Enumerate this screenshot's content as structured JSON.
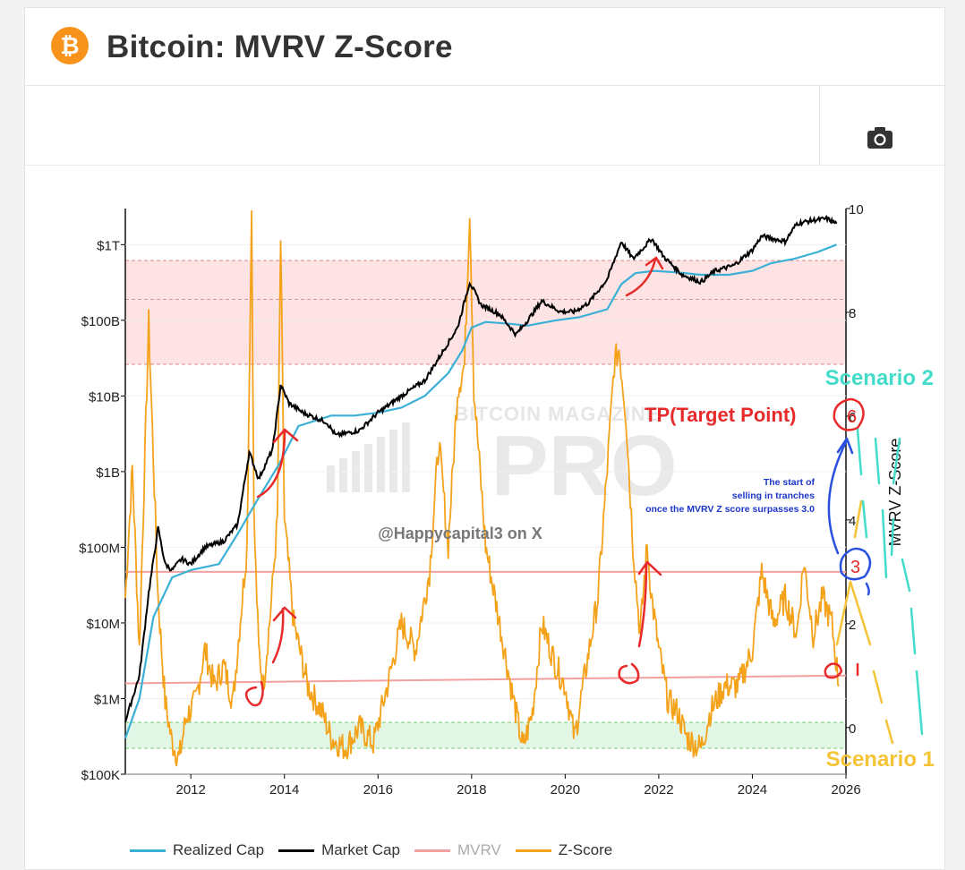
{
  "header": {
    "title": "Bitcoin: MVRV Z-Score",
    "logo_glyph": "₿",
    "logo_icon": "bitcoin-logo-icon"
  },
  "toolbar": {
    "camera_icon": "camera-icon"
  },
  "colors": {
    "realized": "#3ab0d6",
    "market": "#000000",
    "mvrv": "#f2a0a0",
    "zscore": "#f5a21b",
    "red_band": "#fde3e3",
    "green_band": "#e2f6e5",
    "handwriting_red": "#e82a2a",
    "handwriting_blue": "#2a50e0",
    "scenario1": "#f4c436",
    "scenario2": "#43dcc9"
  },
  "chart_data": {
    "type": "line",
    "title": "Bitcoin: MVRV Z-Score",
    "xlabel": "",
    "ylabel_left": "",
    "ylabel_right": "MVRV Z-Score",
    "x_ticks": [
      "2012",
      "2014",
      "2016",
      "2018",
      "2020",
      "2022",
      "2024",
      "2026"
    ],
    "xlim": [
      2010.6,
      2026.0
    ],
    "yleft_scale": "log",
    "yleft_ticks": [
      {
        "value": 100000,
        "label": "$100K"
      },
      {
        "value": 1000000,
        "label": "$1M"
      },
      {
        "value": 10000000,
        "label": "$10M"
      },
      {
        "value": 100000000,
        "label": "$100M"
      },
      {
        "value": 1000000000,
        "label": "$1B"
      },
      {
        "value": 10000000000,
        "label": "$10B"
      },
      {
        "value": 100000000000,
        "label": "$100B"
      },
      {
        "value": 1000000000000,
        "label": "$1T"
      }
    ],
    "yleft_range": [
      100000,
      3000000000000
    ],
    "yright_ticks": [
      "0",
      "2",
      "4",
      "6",
      "8",
      "10"
    ],
    "yright_range": [
      -0.9,
      10
    ],
    "bands": {
      "red_zone": [
        7,
        9
      ],
      "green_zone": [
        -0.4,
        0.1
      ]
    },
    "series": [
      {
        "name": "Market Cap",
        "x": [
          2010.6,
          2010.9,
          2011.1,
          2011.3,
          2011.45,
          2011.6,
          2011.8,
          2012.0,
          2012.3,
          2012.7,
          2013.0,
          2013.25,
          2013.45,
          2013.75,
          2013.92,
          2014.1,
          2014.4,
          2014.9,
          2015.1,
          2015.6,
          2016.0,
          2016.5,
          2017.0,
          2017.4,
          2017.7,
          2017.96,
          2018.2,
          2018.6,
          2018.95,
          2019.2,
          2019.5,
          2019.9,
          2020.2,
          2020.5,
          2020.9,
          2021.2,
          2021.45,
          2021.85,
          2022.1,
          2022.5,
          2022.9,
          2023.2,
          2023.6,
          2024.0,
          2024.2,
          2024.7,
          2024.95,
          2025.3,
          2025.6,
          2025.8
        ],
        "values": [
          500000.0,
          2000000.0,
          25000000.0,
          180000000.0,
          60000000.0,
          50000000.0,
          70000000.0,
          60000000.0,
          100000000.0,
          120000000.0,
          200000000.0,
          1800000000.0,
          800000000.0,
          2000000000.0,
          14000000000.0,
          8000000000.0,
          6000000000.0,
          4500000000.0,
          3000000000.0,
          3500000000.0,
          6000000000.0,
          10000000000.0,
          16000000000.0,
          40000000000.0,
          80000000000.0,
          320000000000.0,
          160000000000.0,
          120000000000.0,
          65000000000.0,
          100000000000.0,
          180000000000.0,
          130000000000.0,
          130000000000.0,
          170000000000.0,
          350000000000.0,
          1100000000000.0,
          650000000000.0,
          1200000000000.0,
          700000000000.0,
          400000000000.0,
          320000000000.0,
          450000000000.0,
          530000000000.0,
          850000000000.0,
          1300000000000.0,
          1100000000000.0,
          1900000000000.0,
          2100000000000.0,
          2200000000000.0,
          1900000000000.0
        ]
      },
      {
        "name": "Realized Cap",
        "x": [
          2010.6,
          2010.9,
          2011.2,
          2011.6,
          2012.0,
          2012.6,
          2013.0,
          2013.4,
          2013.9,
          2014.3,
          2015.0,
          2015.5,
          2016.0,
          2016.5,
          2017.0,
          2017.5,
          2017.8,
          2018.0,
          2018.3,
          2018.8,
          2019.2,
          2019.8,
          2020.3,
          2020.9,
          2021.2,
          2021.5,
          2021.9,
          2022.4,
          2022.9,
          2023.5,
          2024.0,
          2024.4,
          2024.9,
          2025.4,
          2025.8
        ],
        "values": [
          300000.0,
          1000000.0,
          12000000.0,
          40000000.0,
          50000000.0,
          60000000.0,
          150000000.0,
          400000000.0,
          1300000000.0,
          4000000000.0,
          5500000000.0,
          5500000000.0,
          6000000000.0,
          7000000000.0,
          10000000000.0,
          20000000000.0,
          40000000000.0,
          80000000000.0,
          95000000000.0,
          90000000000.0,
          85000000000.0,
          100000000000.0,
          110000000000.0,
          140000000000.0,
          300000000000.0,
          420000000000.0,
          450000000000.0,
          430000000000.0,
          400000000000.0,
          400000000000.0,
          450000000000.0,
          570000000000.0,
          650000000000.0,
          800000000000.0,
          1000000000000.0
        ]
      },
      {
        "name": "Z-Score",
        "x": [
          2010.6,
          2010.75,
          2010.9,
          2011.1,
          2011.3,
          2011.45,
          2011.6,
          2011.75,
          2011.9,
          2012.1,
          2012.3,
          2012.5,
          2012.7,
          2012.9,
          2013.1,
          2013.2,
          2013.3,
          2013.35,
          2013.45,
          2013.55,
          2013.7,
          2013.85,
          2013.92,
          2014.0,
          2014.2,
          2014.5,
          2014.8,
          2015.0,
          2015.3,
          2015.6,
          2015.9,
          2016.2,
          2016.5,
          2016.8,
          2017.1,
          2017.3,
          2017.5,
          2017.7,
          2017.85,
          2017.96,
          2018.05,
          2018.3,
          2018.6,
          2018.9,
          2019.1,
          2019.3,
          2019.5,
          2019.8,
          2020.0,
          2020.2,
          2020.4,
          2020.7,
          2020.9,
          2021.05,
          2021.15,
          2021.3,
          2021.45,
          2021.6,
          2021.75,
          2021.85,
          2022.0,
          2022.2,
          2022.4,
          2022.6,
          2022.9,
          2023.1,
          2023.4,
          2023.7,
          2024.0,
          2024.2,
          2024.45,
          2024.7,
          2024.95,
          2025.1,
          2025.3,
          2025.5,
          2025.7,
          2025.85
        ],
        "values": [
          2.5,
          5,
          1.5,
          7.8,
          2.5,
          0.5,
          -0.3,
          -0.6,
          0.2,
          0.5,
          1.5,
          0.8,
          1.2,
          0.5,
          2.5,
          3.5,
          10,
          4,
          1.5,
          0.8,
          2.2,
          4,
          9.4,
          4,
          2,
          0.8,
          0.3,
          -0.2,
          -0.4,
          0,
          -0.3,
          0.8,
          2,
          1.5,
          3,
          5.5,
          3.5,
          6.5,
          7,
          10,
          6.5,
          3.5,
          2,
          0.5,
          -0.4,
          0.3,
          2,
          1.2,
          0.8,
          -0.2,
          0.9,
          2.5,
          5,
          7,
          7.3,
          6,
          3.5,
          1.8,
          3.5,
          2.5,
          1.5,
          0.5,
          0.3,
          -0.2,
          -0.4,
          0.3,
          0.8,
          0.8,
          1.5,
          3,
          2,
          2.5,
          1.8,
          3.2,
          1.8,
          2.5,
          2,
          0.8
        ]
      },
      {
        "name": "MVRV",
        "x": [
          2010.6,
          2026.0
        ],
        "values": [
          3.0,
          3.0
        ]
      },
      {
        "name": "MVRV (lower)",
        "x": [
          2010.6,
          2026.0
        ],
        "values": [
          0.85,
          1.0
        ]
      }
    ]
  },
  "legend": [
    {
      "label": "Realized Cap",
      "color": "#3ab0d6"
    },
    {
      "label": "Market Cap",
      "color": "#000000"
    },
    {
      "label": "MVRV",
      "color": "#f2a0a0"
    },
    {
      "label": "Z-Score",
      "color": "#f5a21b"
    }
  ],
  "watermark": {
    "line1": "BITCOIN MAGAZINE",
    "line2": "PRO"
  },
  "annotations": {
    "tp": "TP(Target Point)",
    "tp_marker": "6",
    "marker_3": "3",
    "scenario1": "Scenario 1",
    "scenario2": "Scenario 2",
    "credit": "@Happycapital3 on X",
    "note_lines": [
      "The start of",
      "selling in tranches",
      "once the MVRV Z score surpasses 3.0"
    ]
  }
}
